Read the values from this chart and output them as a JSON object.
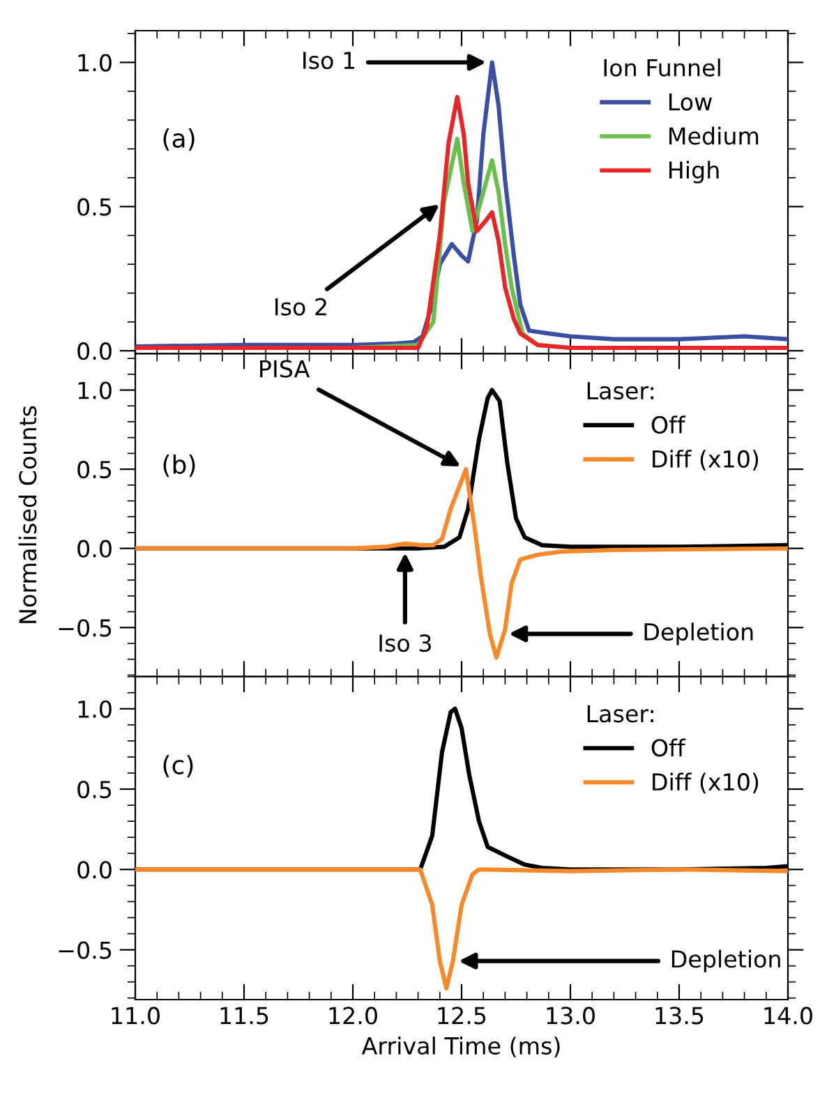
{
  "chart_data": [
    {
      "type": "line",
      "series": [
        {
          "name": "Low",
          "color": "#3a4fa3",
          "x": [
            11.0,
            11.5,
            12.0,
            12.2,
            12.28,
            12.32,
            12.36,
            12.4,
            12.455,
            12.5,
            12.53,
            12.57,
            12.6,
            12.64,
            12.67,
            12.7,
            12.74,
            12.77,
            12.81,
            12.9,
            13.0,
            13.2,
            13.5,
            13.8,
            14.0
          ],
          "values": [
            0.015,
            0.02,
            0.02,
            0.025,
            0.03,
            0.05,
            0.15,
            0.3,
            0.37,
            0.33,
            0.31,
            0.45,
            0.75,
            1.0,
            0.85,
            0.59,
            0.33,
            0.16,
            0.07,
            0.06,
            0.05,
            0.04,
            0.04,
            0.05,
            0.04
          ]
        },
        {
          "name": "Medium",
          "color": "#6abf4b",
          "x": [
            11.0,
            12.0,
            12.3,
            12.37,
            12.42,
            12.48,
            12.51,
            12.55,
            12.6,
            12.64,
            12.67,
            12.7,
            12.73,
            12.78,
            12.85,
            13.0,
            14.0
          ],
          "values": [
            0.01,
            0.01,
            0.02,
            0.1,
            0.52,
            0.735,
            0.58,
            0.415,
            0.55,
            0.66,
            0.55,
            0.37,
            0.22,
            0.06,
            0.02,
            0.01,
            0.01
          ]
        },
        {
          "name": "High",
          "color": "#e8262a",
          "x": [
            11.0,
            12.0,
            12.3,
            12.34,
            12.4,
            12.44,
            12.48,
            12.51,
            12.53,
            12.57,
            12.61,
            12.64,
            12.67,
            12.7,
            12.74,
            12.77,
            12.85,
            13.0,
            14.0
          ],
          "values": [
            0.01,
            0.01,
            0.01,
            0.08,
            0.4,
            0.72,
            0.88,
            0.75,
            0.58,
            0.415,
            0.45,
            0.48,
            0.38,
            0.22,
            0.11,
            0.06,
            0.02,
            0.01,
            0.01
          ]
        }
      ],
      "legend_title": "Ion Funnel",
      "legend": "top right",
      "annotations": [
        "(a)",
        {
          "text": "Iso 1",
          "x": 12.64,
          "y": 1.0
        },
        {
          "text": "Iso 2",
          "x": 12.42,
          "y": 0.52
        }
      ],
      "xlim": [
        11.0,
        14.0
      ],
      "xticks": [
        11.0,
        11.5,
        12.0,
        12.5,
        13.0,
        13.5,
        14.0
      ],
      "ylim": [
        -0.01,
        1.11
      ],
      "yticks": [
        {
          "value": 0.0,
          "label": "0.0"
        },
        {
          "value": 0.5,
          "label": "0.5"
        },
        {
          "value": 1.0,
          "label": "1.0"
        }
      ],
      "tick_labels": "y",
      "grid": false,
      "marker": "none",
      "line_style": "solid"
    },
    {
      "type": "line",
      "series": [
        {
          "name": "Off",
          "color": "#000000",
          "x": [
            11.0,
            12.0,
            12.3,
            12.42,
            12.49,
            12.53,
            12.58,
            12.62,
            12.64,
            12.675,
            12.71,
            12.75,
            12.79,
            12.87,
            13.0,
            13.5,
            14.0
          ],
          "values": [
            0.0,
            0.0,
            0.0,
            0.01,
            0.07,
            0.25,
            0.69,
            0.95,
            1.0,
            0.93,
            0.54,
            0.19,
            0.07,
            0.02,
            0.01,
            0.01,
            0.02
          ]
        },
        {
          "name": "Diff (x10)",
          "color": "#f7892a",
          "x": [
            11.0,
            12.0,
            12.15,
            12.24,
            12.32,
            12.37,
            12.41,
            12.45,
            12.52,
            12.56,
            12.59,
            12.63,
            12.66,
            12.7,
            12.73,
            12.77,
            12.85,
            12.96,
            13.2,
            14.0
          ],
          "values": [
            0.0,
            0.0,
            0.01,
            0.03,
            0.02,
            0.02,
            0.06,
            0.25,
            0.5,
            0.13,
            -0.19,
            -0.54,
            -0.69,
            -0.51,
            -0.22,
            -0.07,
            -0.04,
            -0.02,
            -0.01,
            0.0
          ]
        }
      ],
      "legend_title": "Laser:",
      "legend": "top right",
      "ylabel": "Normalised Counts",
      "annotations": [
        "(b)",
        {
          "text": "PISA",
          "x": 12.52,
          "y": 0.5
        },
        {
          "text": "Iso 3",
          "x": 12.24,
          "y": 0.01
        },
        {
          "text": "Depletion",
          "x": 12.69,
          "y": -0.54
        }
      ],
      "xlim": [
        11.0,
        14.0
      ],
      "xticks": [
        11.0,
        11.5,
        12.0,
        12.5,
        13.0,
        13.5,
        14.0
      ],
      "ylim": [
        -0.81,
        1.23
      ],
      "yticks": [
        {
          "value": -0.5,
          "label": "−0.5"
        },
        {
          "value": 0.0,
          "label": "0.0"
        },
        {
          "value": 0.5,
          "label": "0.5"
        },
        {
          "value": 1.0,
          "label": "1.0"
        }
      ],
      "tick_labels": "y",
      "grid": false,
      "marker": "none",
      "line_style": "solid"
    },
    {
      "type": "line",
      "series": [
        {
          "name": "Off",
          "color": "#000000",
          "x": [
            11.0,
            12.0,
            12.31,
            12.365,
            12.41,
            12.45,
            12.47,
            12.5,
            12.535,
            12.58,
            12.62,
            12.71,
            12.79,
            12.87,
            13.0,
            13.5,
            13.9,
            14.0
          ],
          "values": [
            0.0,
            0.0,
            0.0,
            0.21,
            0.73,
            0.98,
            1.0,
            0.88,
            0.59,
            0.3,
            0.14,
            0.08,
            0.03,
            0.01,
            0.0,
            0.0,
            0.01,
            0.02
          ]
        },
        {
          "name": "Diff (x10)",
          "color": "#f7892a",
          "x": [
            11.0,
            12.0,
            12.31,
            12.365,
            12.4,
            12.43,
            12.46,
            12.5,
            12.55,
            12.58,
            13.0,
            13.5,
            14.0
          ],
          "values": [
            0.0,
            0.0,
            0.0,
            -0.22,
            -0.57,
            -0.74,
            -0.57,
            -0.22,
            -0.03,
            0.0,
            -0.01,
            0.0,
            -0.01
          ]
        }
      ],
      "legend_title": "Laser:",
      "legend": "top right",
      "xlabel": "Arrival Time (ms)",
      "annotations": [
        "(c)",
        {
          "text": "Depletion",
          "x": 12.46,
          "y": -0.57
        }
      ],
      "xlim": [
        11.0,
        14.0
      ],
      "xticks": [
        {
          "value": 11.0,
          "label": "11.0"
        },
        {
          "value": 11.5,
          "label": "11.5"
        },
        {
          "value": 12.0,
          "label": "12.0"
        },
        {
          "value": 12.5,
          "label": "12.5"
        },
        {
          "value": 13.0,
          "label": "13.0"
        },
        {
          "value": 13.5,
          "label": "13.5"
        },
        {
          "value": 14.0,
          "label": "14.0"
        }
      ],
      "ylim": [
        -0.81,
        1.2
      ],
      "yticks": [
        {
          "value": -0.5,
          "label": "−0.5"
        },
        {
          "value": 0.0,
          "label": "0.0"
        },
        {
          "value": 0.5,
          "label": "0.5"
        },
        {
          "value": 1.0,
          "label": "1.0"
        }
      ],
      "grid": false,
      "marker": "none",
      "line_style": "solid"
    }
  ]
}
